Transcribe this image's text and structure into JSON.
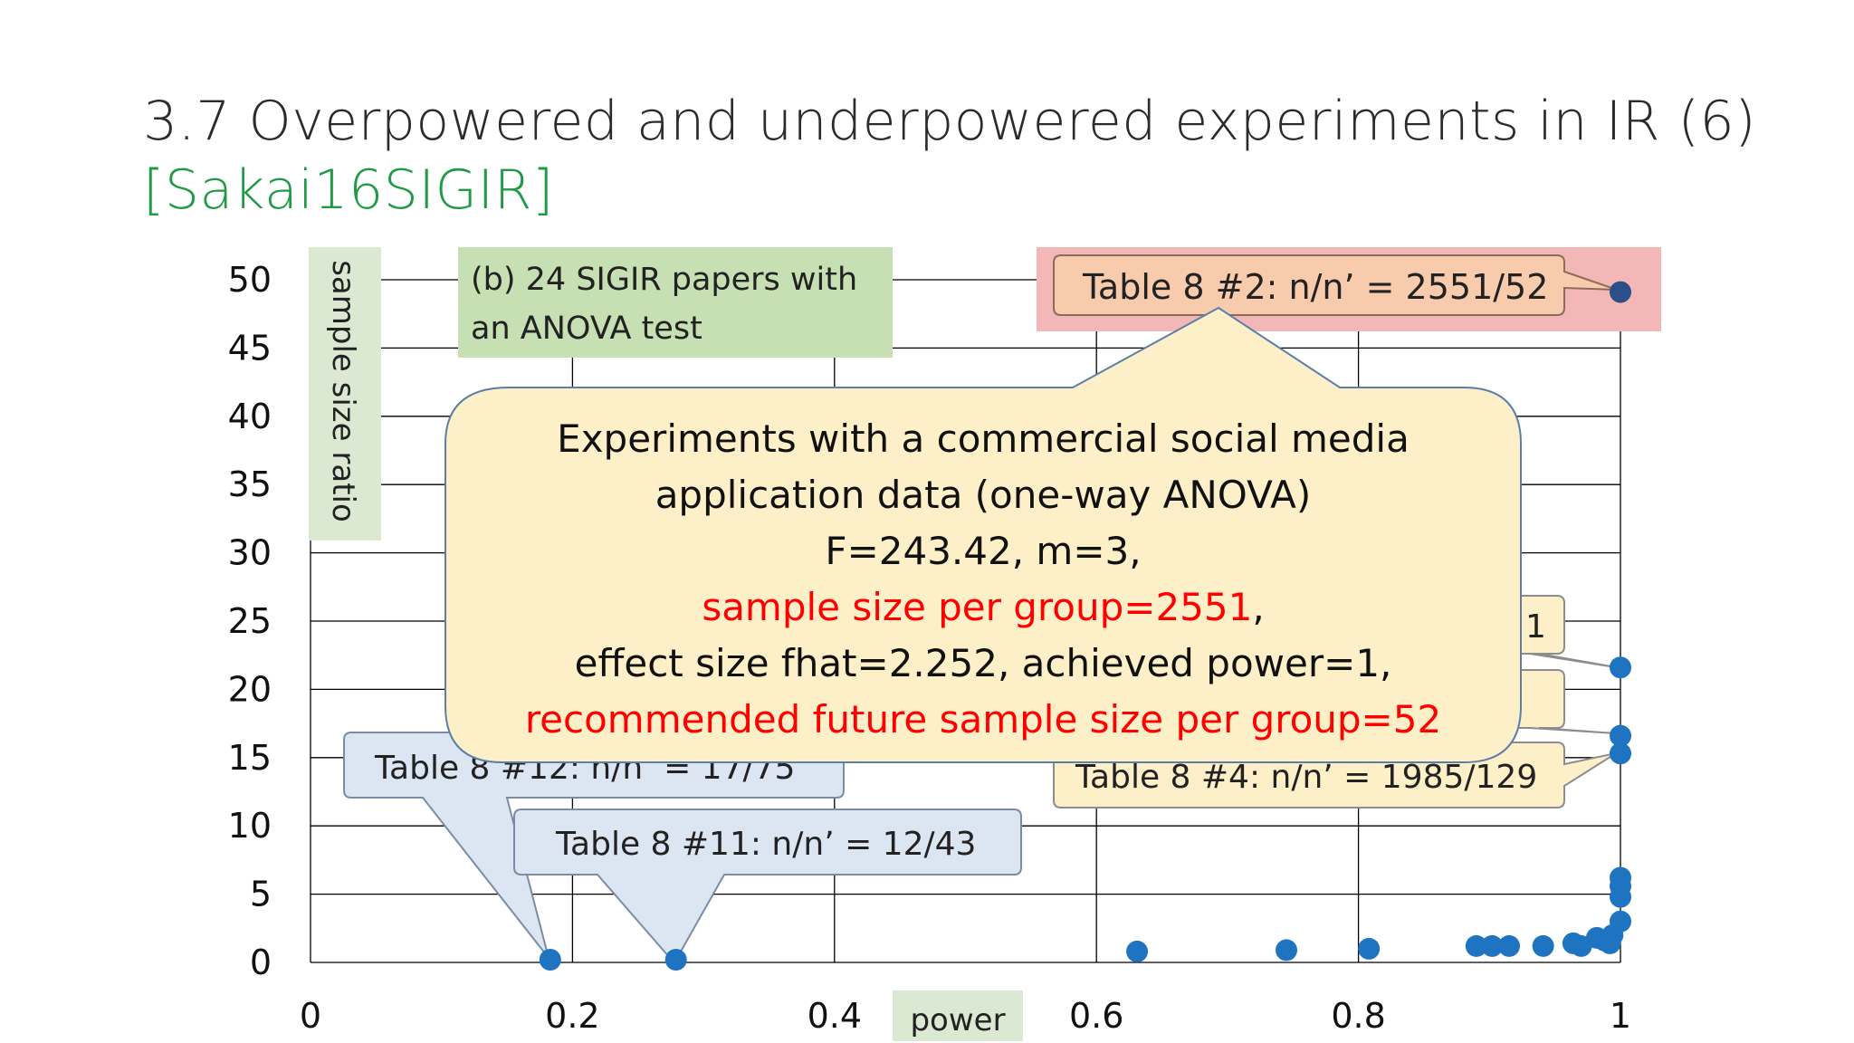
{
  "slide": {
    "title": "3.7 Overpowered and underpowered experiments in IR (6)",
    "citation": "[Sakai16SIGIR]"
  },
  "chart_data": {
    "type": "scatter",
    "xlabel": "power",
    "ylabel": "sample size ratio",
    "xlim": [
      0,
      1
    ],
    "ylim": [
      0,
      50
    ],
    "x_ticks": [
      "0",
      "0.2",
      "0.4",
      "0.6",
      "0.8",
      "1"
    ],
    "y_ticks": [
      "0",
      "5",
      "10",
      "15",
      "20",
      "25",
      "30",
      "35",
      "40",
      "45",
      "50"
    ],
    "grid": true,
    "points": [
      {
        "x": 0.183,
        "y": 0.2
      },
      {
        "x": 0.279,
        "y": 0.2
      },
      {
        "x": 0.631,
        "y": 0.8
      },
      {
        "x": 0.745,
        "y": 0.9
      },
      {
        "x": 0.808,
        "y": 1.0
      },
      {
        "x": 0.89,
        "y": 1.2
      },
      {
        "x": 0.902,
        "y": 1.2
      },
      {
        "x": 0.915,
        "y": 1.2
      },
      {
        "x": 0.941,
        "y": 1.2
      },
      {
        "x": 0.964,
        "y": 1.4
      },
      {
        "x": 0.97,
        "y": 1.2
      },
      {
        "x": 0.982,
        "y": 1.8
      },
      {
        "x": 0.988,
        "y": 1.6
      },
      {
        "x": 0.992,
        "y": 1.4
      },
      {
        "x": 0.994,
        "y": 2.0
      },
      {
        "x": 1.0,
        "y": 3.0
      },
      {
        "x": 1.0,
        "y": 4.8
      },
      {
        "x": 1.0,
        "y": 5.6
      },
      {
        "x": 1.0,
        "y": 6.2
      },
      {
        "x": 1.0,
        "y": 15.3
      },
      {
        "x": 1.0,
        "y": 16.6
      },
      {
        "x": 1.0,
        "y": 21.6
      },
      {
        "x": 1.0,
        "y": 49.1,
        "highlight": true
      }
    ],
    "colors": {
      "point": "#1f74c2",
      "highlight_point": "#2c4f8a",
      "grid": "#000000",
      "label_green": "#c6e0b4",
      "highlight_bg": "#f4b7b7"
    },
    "annotations": {
      "legend_box": "(b) 24 SIGIR papers with an ANOVA test",
      "callout_2": "Table 8 #2: n/n’ = 2551/52",
      "callout_12": "Table 8 #12: n/n’ = 17/75",
      "callout_11": "Table 8 #11: n/n’ = 12/43",
      "callout_4": "Table 8 #4: n/n’ = 1985/129",
      "callout_hidden_a": "1",
      "main_callout": {
        "line1": "Experiments with a commercial social media",
        "line2": "application data (one-way ANOVA)",
        "line3": "F=243.42, m=3,",
        "line4": "sample size per group=2551",
        "line4_suffix": ",",
        "line5": "effect size fhat=2.252, achieved power=1,",
        "line6": "recommended future sample size per group=52"
      }
    }
  }
}
